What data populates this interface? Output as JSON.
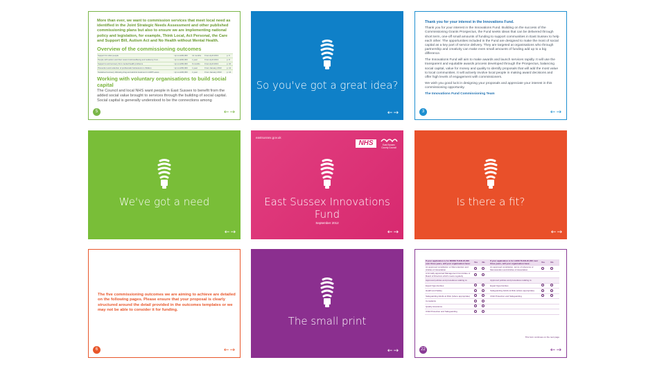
{
  "cards": {
    "overview": {
      "intro": "More than ever, we want to commission services that meet local need as identified in the Joint Strategic Needs Assessment and other published commissioning plans but also to ensure we are implementing national policy and legislation, for example, Think Local, Act Personal, the Care and Support Bill, Autism Act and No Health without Mental Health.",
      "heading1": "Overview of the commissioning outcomes",
      "table_rows": [
        [
          "Support for older people",
          "Up to £100,000",
          "12 months",
          "From April 2013",
          "p. 6"
        ],
        [
          "People with autism and their carers build wellbeing and resiliency from...",
          "Up to £200,000",
          "1 year",
          "From April 2013",
          "p. 8"
        ],
        [
          "Support to aid recovery from mental health problems",
          "Up to £150,000",
          "6 months",
          "From April 2013",
          "p. 10"
        ],
        [
          "Prevention and reduction of problematic behaviours in children",
          "Up to £150,000",
          "1 year",
          "From January 2013",
          "p. 12"
        ],
        [
          "Sustained recovery following drug and alcohol treatment in HMP Lewes",
          "Up to £100,000",
          "1 year",
          "From January 2013",
          "p. 14"
        ]
      ],
      "heading2": "Working with voluntary organisations to build social capital",
      "body": "The Council and local NHS want people in East Sussex to benefit from the added social value brought to services through the building of social capital. Social capital is generally understood to be the connections among",
      "page": "5",
      "arrows": "←→"
    },
    "great_idea": {
      "title": "So you've got a great idea?",
      "arrows": "←→"
    },
    "thank_you": {
      "heading": "Thank you for your interest in the Innovations Fund.",
      "p1": "Thank you for your interest in the Innovations Fund. Building on the success of the Commissioning Grants Prospectus, the Fund seeks ideas that can be delivered through short term, one-off small amounts of funding to support communities in East Sussex to help each other. The opportunities included in the Fund are designed to make the most of social capital as a key part of service delivery. They are targeted at organisations who through partnership and creativity can make even small amounts of funding add up to a big difference.",
      "p2": "The Innovations Fund will aim to make awards and launch services rapidly. It will use the transparent and equitable awards process developed through the Prospectus, balancing social capital, value for money and quality to identify proposals that will add the most value to local communities. It will actively involve local people in making award decisions and offer high levels of engagement with commissioners.",
      "p3": "We wish you good luck in designing your proposals and appreciate your interest in this commissioning opportunity.",
      "sign": "The Innovations Fund Commissioning Team",
      "page": "3",
      "arrows": "←→"
    },
    "need": {
      "title": "We've got a need",
      "arrows": "←→"
    },
    "cover": {
      "url": "eastsussex.gov.uk",
      "nhs": "NHS",
      "council": "East Sussex County Council",
      "title": "East Sussex Innovations Fund",
      "date": "September 2012",
      "arrows": "←→"
    },
    "fit": {
      "title": "Is there a fit?",
      "arrows": "←→"
    },
    "outcomes_intro": {
      "text": "The five commissioning outcomes we are aiming to achieve are detailed on the following pages. Please ensure that your proposal is clearly structured around the detail provided in the outcomes templates or we may not be able to consider it for funding.",
      "page": "6",
      "arrows": "←→"
    },
    "small_print": {
      "title": "The small print",
      "arrows": "←→"
    },
    "checklist": {
      "header_left": "If your application is for MORE THAN £5,000 over three years, will your organisation have:",
      "header_right": "If your application is for LESS THAN £5,000 over three years, will your organisation have:",
      "yes": "Yes",
      "no": "No",
      "rows_left": [
        "An approved constitution or Memorandum and Articles of Association",
        "A formally appointed Management Committee or Board of Directors which meets regularly",
        "Approved policies and procedures relating to:",
        "Equal Opportunities",
        "Health and Safety",
        "Safeguarding Adults at Risk (where appropriate)",
        "Complaints",
        "Quality Assurance",
        "Child Protection and Safeguarding"
      ],
      "rows_right": [
        "An approved constitution, terms of reference or Memorandum and Articles of Association",
        "",
        "Approved policies and procedures relating to:",
        "Equal Opportunities",
        "Safeguarding Adults at Risk (where appropriate)",
        "Child Protection and Safeguarding",
        "",
        "",
        ""
      ],
      "note": "This form continues on the next page",
      "page": "22",
      "arrows": "←→"
    }
  },
  "colors": {
    "blue": "#0f80c8",
    "green": "#79be38",
    "pink": "#d7296f",
    "orange": "#e9502a",
    "purple": "#8b2f8f"
  }
}
